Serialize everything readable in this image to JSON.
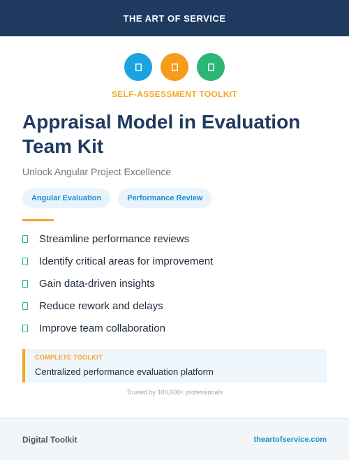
{
  "header": {
    "brand": "THE ART OF SERVICE"
  },
  "icons": [
    {
      "name": "document-icon",
      "color": "#1aa3e0"
    },
    {
      "name": "document-icon",
      "color": "#f59c1a"
    },
    {
      "name": "document-icon",
      "color": "#2bb673"
    }
  ],
  "hero": {
    "eyebrow": "SELF-ASSESSMENT TOOLKIT",
    "title": "Appraisal Model in Evaluation Team Kit",
    "subtitle": "Unlock Angular Project Excellence"
  },
  "tags": [
    "Angular Evaluation",
    "Performance Review"
  ],
  "benefits": [
    "Streamline performance reviews",
    "Identify critical areas for improvement",
    "Gain data-driven insights",
    "Reduce rework and delays",
    "Improve team collaboration"
  ],
  "callout": {
    "label": "COMPLETE TOOLKIT",
    "text": "Centralized performance evaluation platform"
  },
  "trust_line": "Trusted by 100,000+ professionals",
  "footer": {
    "left": "Digital Toolkit",
    "right": "theartofservice.com"
  },
  "colors": {
    "navy": "#1e3a5f",
    "accent_orange": "#f5a623",
    "link_blue": "#1b8fd1",
    "check_green": "#2bb673"
  }
}
